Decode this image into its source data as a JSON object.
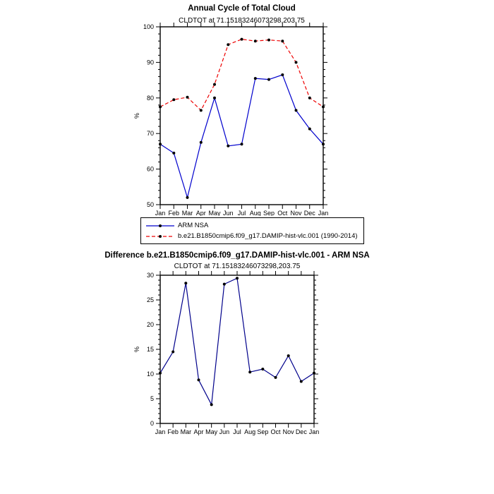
{
  "page": {
    "background": "#ffffff"
  },
  "legend": {
    "items": [
      {
        "label": "ARM NSA"
      },
      {
        "label": "b.e21.B1850cmip6.f09_g17.DAMIP-hist-vlc.001 (1990-2014)"
      }
    ]
  },
  "chart_data": [
    {
      "type": "line",
      "title": "Annual Cycle of Total Cloud",
      "subtitle": "CLDTOT at 71.15183246073298,203.75",
      "ylabel": "%",
      "xlabel": "",
      "ylim": [
        50,
        100
      ],
      "ytick_major": 10,
      "ytick_minor": 2,
      "grid": false,
      "legend_position": "below",
      "categories": [
        "Jan",
        "Feb",
        "Mar",
        "Apr",
        "May",
        "Jun",
        "Jul",
        "Aug",
        "Sep",
        "Oct",
        "Nov",
        "Dec",
        "Jan"
      ],
      "series": [
        {
          "name": "ARM NSA",
          "color": "#0000cd",
          "dash": "solid",
          "marker_color": "#000000",
          "values": [
            67,
            64.5,
            52,
            67.5,
            80,
            66.5,
            67,
            85.5,
            85.2,
            86.5,
            76.5,
            71.3,
            67
          ]
        },
        {
          "name": "b.e21.B1850cmip6.f09_g17.DAMIP-hist-vlc.001 (1990-2014)",
          "color": "#ee0000",
          "dash": "dashed",
          "marker_color": "#000000",
          "values": [
            77.5,
            79.5,
            80.2,
            76.5,
            83.8,
            95,
            96.5,
            96,
            96.3,
            96,
            90,
            80,
            77.5
          ]
        }
      ]
    },
    {
      "type": "line",
      "title": "Difference b.e21.B1850cmip6.f09_g17.DAMIP-hist-vlc.001 - ARM NSA",
      "subtitle": "CLDTOT at 71.15183246073298,203.75",
      "ylabel": "%",
      "xlabel": "",
      "ylim": [
        0,
        30
      ],
      "ytick_major": 5,
      "ytick_minor": 1,
      "grid": false,
      "legend_position": "none",
      "categories": [
        "Jan",
        "Feb",
        "Mar",
        "Apr",
        "May",
        "Jun",
        "Jul",
        "Aug",
        "Sep",
        "Oct",
        "Nov",
        "Dec",
        "Jan"
      ],
      "series": [
        {
          "name": "Difference",
          "color": "#00008b",
          "dash": "solid",
          "marker_color": "#000000",
          "values": [
            10.2,
            14.5,
            28.4,
            8.8,
            3.8,
            28.2,
            29.4,
            10.4,
            11.0,
            9.3,
            13.7,
            8.5,
            10.2
          ]
        }
      ]
    }
  ]
}
